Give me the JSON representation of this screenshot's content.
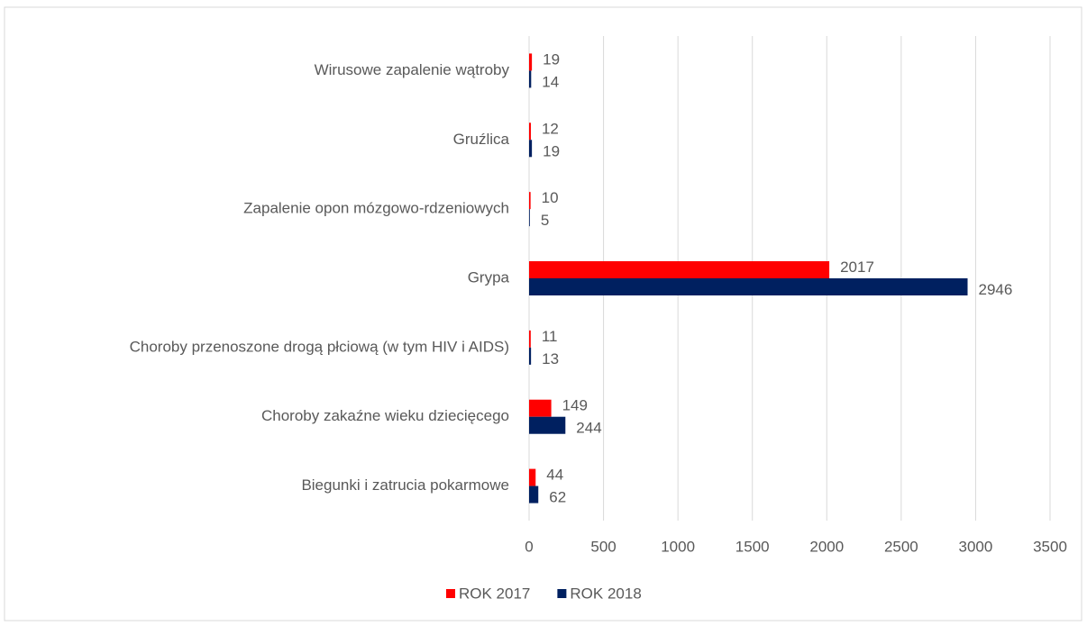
{
  "chart_data": {
    "type": "hbar",
    "categories": [
      "Wirusowe zapalenie wątroby",
      "Gruźlica",
      "Zapalenie opon mózgowo-rdzeniowych",
      "Grypa",
      "Choroby przenoszone drogą płciową (w tym HIV i AIDS)",
      "Choroby zakaźne wieku dziecięcego",
      "Biegunki i zatrucia pokarmowe"
    ],
    "series": [
      {
        "name": "ROK 2017",
        "color": "#ff0000",
        "values": [
          19,
          12,
          10,
          2017,
          11,
          149,
          44
        ]
      },
      {
        "name": "ROK 2018",
        "color": "#002060",
        "values": [
          14,
          19,
          5,
          2946,
          13,
          244,
          62
        ]
      }
    ],
    "xlim": [
      0,
      3500
    ],
    "xticks": [
      0,
      500,
      1000,
      1500,
      2000,
      2500,
      3000,
      3500
    ],
    "grid": true,
    "legend": "bottom"
  }
}
